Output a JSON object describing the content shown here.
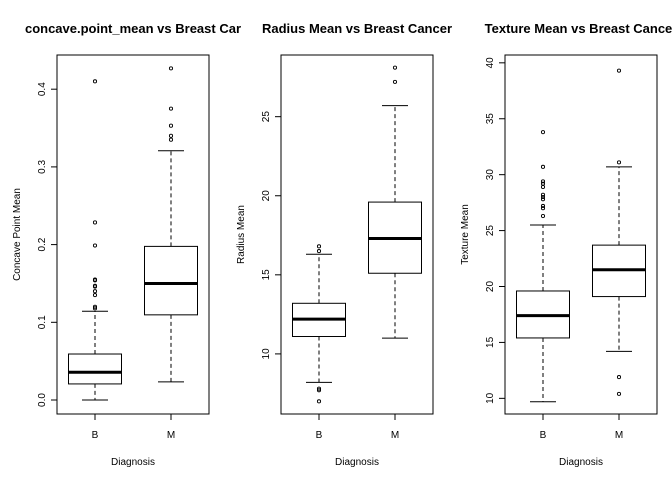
{
  "chart_data": [
    {
      "type": "boxplot",
      "title": "concave.point_mean vs Breast Car",
      "xlabel": "Diagnosis",
      "ylabel": "Concave Point Mean",
      "categories": [
        "B",
        "M"
      ],
      "ylim": [
        -0.018,
        0.444
      ],
      "yticks": [
        0.0,
        0.1,
        0.2,
        0.3,
        0.4
      ],
      "ytick_labels": [
        "0.0",
        "0.1",
        "0.2",
        "0.3",
        "0.4"
      ],
      "boxes": [
        {
          "category": "B",
          "min": 0.0,
          "q1": 0.0207,
          "median": 0.0357,
          "q3": 0.0592,
          "max": 0.1143,
          "outliers": [
            0.4101,
            0.2285,
            0.1988,
            0.155,
            0.154,
            0.147,
            0.146,
            0.14,
            0.135,
            0.12,
            0.118
          ]
        },
        {
          "category": "M",
          "min": 0.0234,
          "q1": 0.1096,
          "median": 0.15,
          "q3": 0.1977,
          "max": 0.3208,
          "outliers": [
            0.4268,
            0.375,
            0.353,
            0.34,
            0.335
          ]
        }
      ]
    },
    {
      "type": "boxplot",
      "title": "Radius Mean vs Breast Cancer",
      "xlabel": "Diagnosis",
      "ylabel": "Radius Mean",
      "categories": [
        "B",
        "M"
      ],
      "ylim": [
        6.2,
        28.9
      ],
      "yticks": [
        10,
        15,
        20,
        25
      ],
      "ytick_labels": [
        "10",
        "15",
        "20",
        "25"
      ],
      "boxes": [
        {
          "category": "B",
          "min": 8.2,
          "q1": 11.1,
          "median": 12.2,
          "q3": 13.2,
          "max": 16.3,
          "outliers": [
            16.8,
            16.5,
            7.8,
            7.7,
            7.0
          ]
        },
        {
          "category": "M",
          "min": 11.0,
          "q1": 15.1,
          "median": 17.3,
          "q3": 19.6,
          "max": 25.7,
          "outliers": [
            28.1,
            27.2
          ]
        }
      ]
    },
    {
      "type": "boxplot",
      "title": "Texture Mean vs Breast Cancer",
      "xlabel": "Diagnosis",
      "ylabel": "Texture Mean",
      "categories": [
        "B",
        "M"
      ],
      "ylim": [
        8.6,
        40.7
      ],
      "yticks": [
        10,
        15,
        20,
        25,
        30,
        35,
        40
      ],
      "ytick_labels": [
        "10",
        "15",
        "20",
        "25",
        "30",
        "35",
        "40"
      ],
      "boxes": [
        {
          "category": "B",
          "min": 9.7,
          "q1": 15.4,
          "median": 17.4,
          "q3": 19.6,
          "max": 25.5,
          "outliers": [
            33.8,
            30.7,
            29.4,
            29.2,
            28.9,
            28.2,
            28.0,
            27.8,
            27.2,
            27.0,
            26.3
          ]
        },
        {
          "category": "M",
          "min": 14.2,
          "q1": 19.1,
          "median": 21.5,
          "q3": 23.7,
          "max": 30.7,
          "outliers": [
            39.3,
            31.1,
            11.9,
            10.4
          ]
        }
      ]
    }
  ]
}
